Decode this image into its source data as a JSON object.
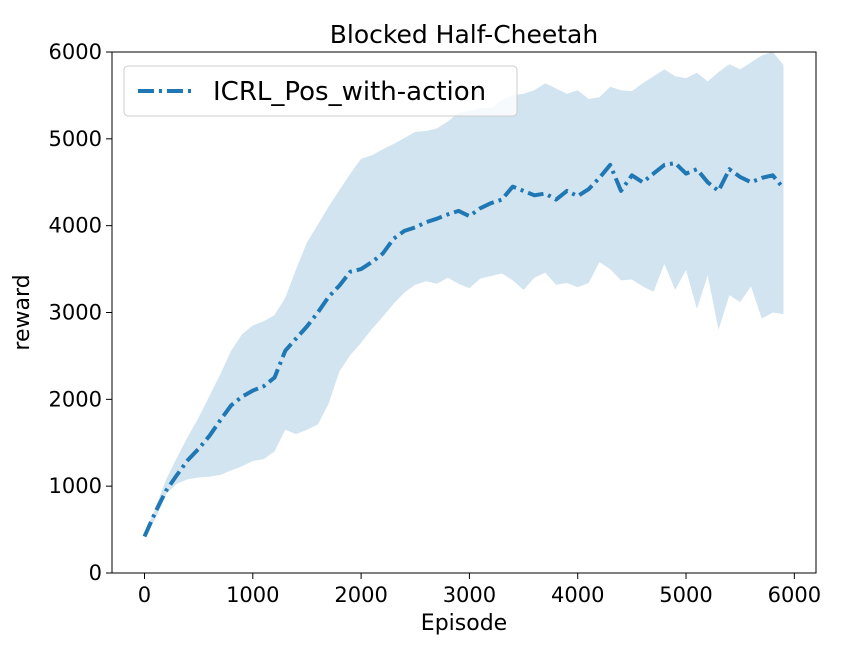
{
  "chart_data": {
    "type": "line",
    "title": "Blocked Half-Cheetah",
    "xlabel": "Episode",
    "ylabel": "reward",
    "xlim": [
      -300,
      6200
    ],
    "ylim": [
      0,
      6000
    ],
    "xticks": [
      0,
      1000,
      2000,
      3000,
      4000,
      5000,
      6000
    ],
    "yticks": [
      0,
      1000,
      2000,
      3000,
      4000,
      5000,
      6000
    ],
    "xtick_labels": [
      "0",
      "1000",
      "2000",
      "3000",
      "4000",
      "5000",
      "6000"
    ],
    "ytick_labels": [
      "0",
      "1000",
      "2000",
      "3000",
      "4000",
      "5000",
      "6000"
    ],
    "legend_position": "upper-left",
    "series": [
      {
        "name": "ICRL_Pos_with-action",
        "color": "#1f77b4",
        "band_color": "#1f77b4",
        "x": [
          0,
          100,
          200,
          300,
          400,
          500,
          600,
          700,
          800,
          900,
          1000,
          1100,
          1200,
          1300,
          1400,
          1500,
          1600,
          1700,
          1800,
          1900,
          2000,
          2100,
          2200,
          2300,
          2400,
          2500,
          2600,
          2700,
          2800,
          2900,
          3000,
          3100,
          3200,
          3300,
          3400,
          3500,
          3600,
          3700,
          3800,
          3900,
          4000,
          4100,
          4200,
          4300,
          4400,
          4500,
          4600,
          4700,
          4800,
          4900,
          5000,
          5100,
          5200,
          5300,
          5400,
          5500,
          5600,
          5700,
          5800,
          5900
        ],
        "mean": [
          420,
          700,
          950,
          1130,
          1300,
          1430,
          1580,
          1760,
          1930,
          2030,
          2100,
          2150,
          2250,
          2560,
          2700,
          2840,
          3000,
          3180,
          3310,
          3470,
          3500,
          3580,
          3680,
          3850,
          3940,
          3980,
          4040,
          4080,
          4130,
          4170,
          4110,
          4200,
          4260,
          4300,
          4450,
          4400,
          4350,
          4370,
          4300,
          4400,
          4340,
          4420,
          4550,
          4700,
          4400,
          4580,
          4500,
          4600,
          4700,
          4720,
          4600,
          4650,
          4500,
          4400,
          4650,
          4560,
          4500,
          4550,
          4580,
          4430
        ],
        "upper": [
          430,
          750,
          1080,
          1330,
          1570,
          1790,
          2040,
          2290,
          2560,
          2750,
          2850,
          2900,
          2970,
          3170,
          3500,
          3810,
          4010,
          4220,
          4410,
          4600,
          4770,
          4810,
          4880,
          4940,
          5010,
          5080,
          5090,
          5120,
          5200,
          5300,
          5320,
          5360,
          5350,
          5450,
          5500,
          5520,
          5560,
          5640,
          5580,
          5520,
          5560,
          5460,
          5480,
          5600,
          5560,
          5550,
          5640,
          5720,
          5800,
          5720,
          5700,
          5760,
          5660,
          5770,
          5860,
          5800,
          5880,
          5960,
          6000,
          5850
        ],
        "lower": [
          410,
          620,
          910,
          1030,
          1080,
          1100,
          1110,
          1130,
          1180,
          1230,
          1290,
          1310,
          1400,
          1650,
          1600,
          1650,
          1710,
          1950,
          2320,
          2510,
          2650,
          2810,
          2950,
          3100,
          3230,
          3320,
          3360,
          3330,
          3400,
          3330,
          3280,
          3390,
          3420,
          3450,
          3370,
          3260,
          3400,
          3460,
          3320,
          3340,
          3290,
          3340,
          3580,
          3500,
          3370,
          3380,
          3300,
          3240,
          3560,
          3260,
          3490,
          3040,
          3430,
          2800,
          3200,
          3120,
          3300,
          2930,
          3000,
          2980
        ]
      }
    ]
  }
}
